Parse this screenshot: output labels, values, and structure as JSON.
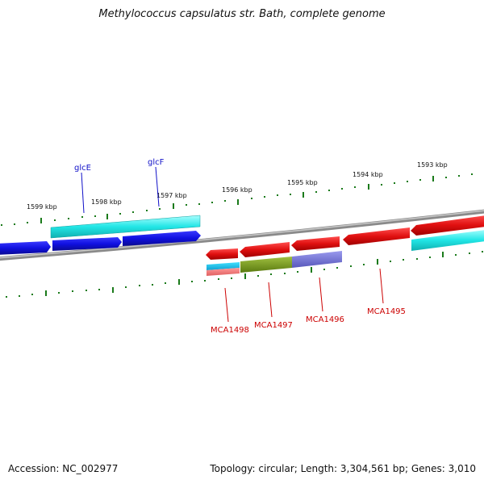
{
  "title": "Methylococcus capsulatus str. Bath, complete genome",
  "footer": {
    "accession": "Accession: NC_002977",
    "topology": "Topology: circular; Length: 3,304,561 bp; Genes: 3,010"
  },
  "ticks": {
    "kbp_1599": "1599 kbp",
    "kbp_1598": "1598 kbp",
    "kbp_1597": "1597 kbp",
    "kbp_1596": "1596 kbp",
    "kbp_1595": "1595 kbp",
    "kbp_1594": "1594 kbp",
    "kbp_1593": "1593 kbp"
  },
  "genes": {
    "glcE": "glcE",
    "glcF": "glcF",
    "MCA1498": "MCA1498",
    "MCA1497": "MCA1497",
    "MCA1496": "MCA1496",
    "MCA1495": "MCA1495"
  },
  "colors": {
    "backbone": "#7a7a7a",
    "forward_gene": "#1010e0",
    "reverse_gene": "#e01010",
    "cds_cyan": "#22e6e6",
    "tick": "#1a7a1a",
    "label_blue": "#1010c8",
    "label_red": "#cc0000"
  }
}
